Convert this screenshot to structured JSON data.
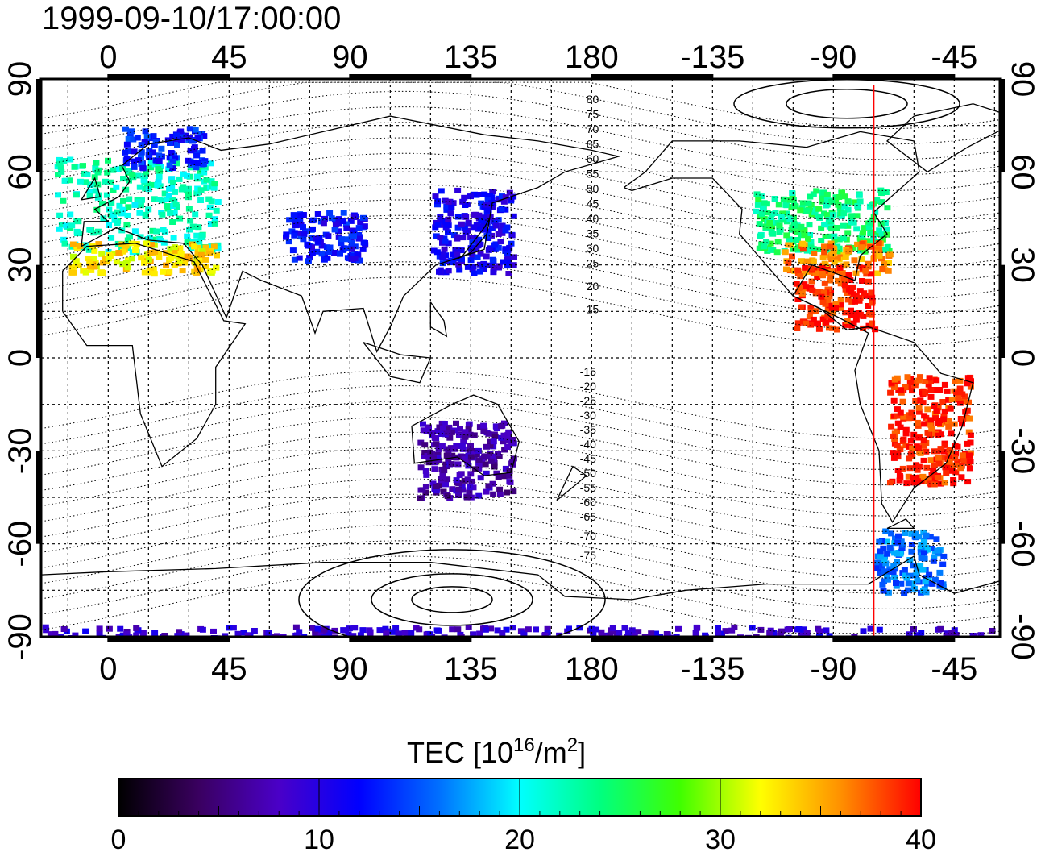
{
  "title": "1999-09-10/17:00:00",
  "colorbar": {
    "title_prefix": "TEC  [10",
    "title_sup1": "16",
    "title_mid": "/m",
    "title_sup2": "2",
    "title_suffix": "]",
    "min": 0,
    "max": 40,
    "ticks": [
      "0",
      "10",
      "20",
      "30",
      "40"
    ],
    "colormap": [
      "#000000",
      "#3a0060",
      "#4a00c8",
      "#0000ff",
      "#0070ff",
      "#00ffff",
      "#00ff80",
      "#40ff00",
      "#ffff00",
      "#ff9000",
      "#ff0000"
    ]
  },
  "map": {
    "lon_ticks": [
      "0",
      "45",
      "90",
      "135",
      "180",
      "-135",
      "-90",
      "-45"
    ],
    "lat_ticks_left": [
      "90",
      "60",
      "30",
      "0",
      "-30",
      "-60",
      "-90"
    ],
    "lat_ticks_right": [
      "90",
      "60",
      "30",
      "0",
      "-30",
      "-60",
      "-90"
    ],
    "meridian_marker_lon": -75,
    "marker_color": "#ff0000",
    "contour_labels_north": [
      "80",
      "75",
      "70",
      "65",
      "60",
      "55",
      "50",
      "45",
      "40",
      "35",
      "30",
      "25",
      "20",
      "15"
    ],
    "contour_labels_south": [
      "-15",
      "-20",
      "-25",
      "-30",
      "-35",
      "-40",
      "-45",
      "-50",
      "-55",
      "-60",
      "-65",
      "-70",
      "-75"
    ]
  },
  "chart_data": {
    "type": "heatmap",
    "title": "1999-09-10/17:00:00",
    "xlim": [
      -25,
      332
    ],
    "ylim": [
      -90,
      90
    ],
    "grid": true,
    "colorbar_range": [
      0,
      40
    ],
    "regions": [
      {
        "lon0": -20,
        "lon1": 40,
        "lat0": 35,
        "lat1": 65,
        "tec": 22
      },
      {
        "lon0": -15,
        "lon1": 40,
        "lat0": 28,
        "lat1": 38,
        "tec": 33
      },
      {
        "lon0": 5,
        "lon1": 35,
        "lat0": 62,
        "lat1": 75,
        "tec": 13
      },
      {
        "lon0": 65,
        "lon1": 95,
        "lat0": 32,
        "lat1": 48,
        "tec": 12
      },
      {
        "lon0": 120,
        "lon1": 150,
        "lat0": 28,
        "lat1": 55,
        "tec": 11
      },
      {
        "lon0": 240,
        "lon1": 290,
        "lat0": 35,
        "lat1": 55,
        "tec": 24
      },
      {
        "lon0": 250,
        "lon1": 290,
        "lat0": 28,
        "lat1": 38,
        "tec": 36
      },
      {
        "lon0": 255,
        "lon1": 285,
        "lat0": 10,
        "lat1": 30,
        "tec": 39
      },
      {
        "lon0": 290,
        "lon1": 320,
        "lat0": -40,
        "lat1": -5,
        "tec": 39
      },
      {
        "lon0": 115,
        "lon1": 150,
        "lat0": -45,
        "lat1": -20,
        "tec": 7
      },
      {
        "lon0": 285,
        "lon1": 310,
        "lat0": -75,
        "lat1": -55,
        "tec": 16
      },
      {
        "lon0": -25,
        "lon1": 332,
        "lat0": -90,
        "lat1": -86,
        "tec": 9
      }
    ]
  }
}
